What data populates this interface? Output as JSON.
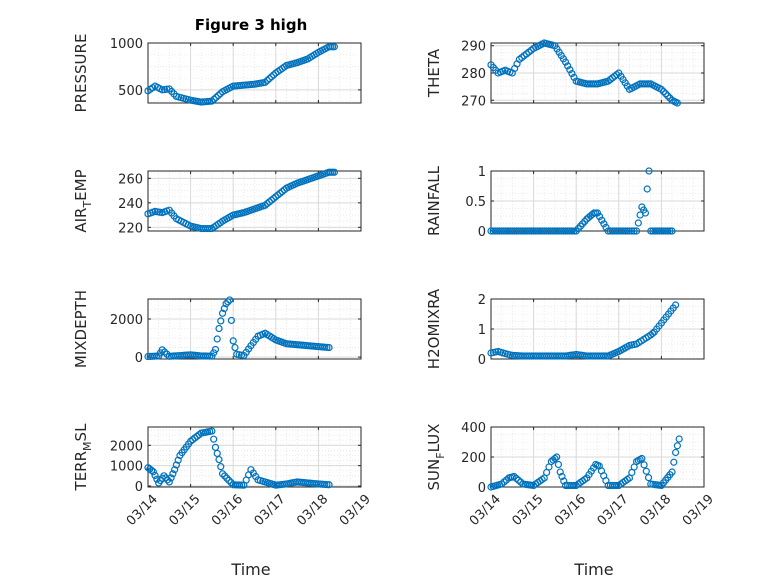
{
  "figure": {
    "title": "Figure 3 high",
    "xlabel": "Time"
  },
  "colors": {
    "marker": "#0072BD",
    "axis": "#262626",
    "grid": "#d9d9d9",
    "minor_grid": "#e6e6e6"
  },
  "chart_data": [
    {
      "type": "scatter",
      "id": "pressure",
      "ylabel": "PRESSURE",
      "ylabel_base": "PRESSURE",
      "ylabel_sub": "",
      "ylabel_rest": "",
      "ylim": [
        360,
        1000
      ],
      "yticks": [
        500,
        1000
      ],
      "yticklabels": [
        "500",
        "1000"
      ],
      "xlim": [
        "03/14",
        "03/18"
      ],
      "xticklabels": [],
      "grid": true,
      "x": [
        "03/14 00:00",
        "03/14 04:00",
        "03/14 08:00",
        "03/14 12:00",
        "03/14 16:00",
        "03/14 20:00",
        "03/15 00:00",
        "03/15 06:00",
        "03/15 12:00",
        "03/15 18:00",
        "03/16 00:00",
        "03/16 06:00",
        "03/16 12:00",
        "03/16 18:00",
        "03/17 00:00",
        "03/17 06:00",
        "03/17 12:00",
        "03/17 18:00",
        "03/18 00:00",
        "03/18 06:00",
        "03/18 09:00"
      ],
      "y": [
        490,
        540,
        500,
        510,
        430,
        410,
        390,
        370,
        380,
        480,
        540,
        550,
        560,
        580,
        680,
        760,
        790,
        830,
        900,
        960,
        960
      ]
    },
    {
      "type": "scatter",
      "id": "theta",
      "ylabel": "THETA",
      "ylabel_base": "THETA",
      "ylabel_sub": "",
      "ylabel_rest": "",
      "ylim": [
        269,
        291
      ],
      "yticks": [
        270,
        280,
        290
      ],
      "yticklabels": [
        "270",
        "280",
        "290"
      ],
      "xlim": [
        "03/14",
        "03/18"
      ],
      "xticklabels": [],
      "grid": true,
      "x": [
        "03/14 00:00",
        "03/14 04:00",
        "03/14 08:00",
        "03/14 12:00",
        "03/14 16:00",
        "03/14 20:00",
        "03/15 00:00",
        "03/15 06:00",
        "03/15 12:00",
        "03/15 18:00",
        "03/16 00:00",
        "03/16 06:00",
        "03/16 12:00",
        "03/16 18:00",
        "03/17 00:00",
        "03/17 06:00",
        "03/17 12:00",
        "03/17 18:00",
        "03/18 00:00",
        "03/18 06:00",
        "03/18 09:00"
      ],
      "y": [
        283,
        280,
        281,
        280,
        285,
        287,
        289,
        291,
        290,
        284,
        277,
        276,
        276,
        277,
        280,
        274,
        276,
        276,
        274,
        270,
        269
      ]
    },
    {
      "type": "scatter",
      "id": "air_temp",
      "ylabel": "AIR_TEMP",
      "ylabel_base": "AIR",
      "ylabel_sub": "T",
      "ylabel_rest": "EMP",
      "ylim": [
        217,
        266
      ],
      "yticks": [
        220,
        240,
        260
      ],
      "yticklabels": [
        "220",
        "240",
        "260"
      ],
      "xlim": [
        "03/14",
        "03/18"
      ],
      "xticklabels": [],
      "grid": true,
      "x": [
        "03/14 00:00",
        "03/14 04:00",
        "03/14 08:00",
        "03/14 12:00",
        "03/14 16:00",
        "03/14 20:00",
        "03/15 00:00",
        "03/15 06:00",
        "03/15 12:00",
        "03/15 18:00",
        "03/16 00:00",
        "03/16 06:00",
        "03/16 12:00",
        "03/16 18:00",
        "03/17 00:00",
        "03/17 06:00",
        "03/17 12:00",
        "03/17 18:00",
        "03/18 00:00",
        "03/18 06:00",
        "03/18 09:00"
      ],
      "y": [
        231,
        233,
        232,
        234,
        227,
        224,
        221,
        219,
        219,
        225,
        230,
        232,
        235,
        238,
        245,
        252,
        256,
        259,
        262,
        265,
        265
      ]
    },
    {
      "type": "scatter",
      "id": "rainfall",
      "ylabel": "RAINFALL",
      "ylabel_base": "RAINFALL",
      "ylabel_sub": "",
      "ylabel_rest": "",
      "ylim": [
        0,
        1
      ],
      "yticks": [
        0,
        0.5,
        1
      ],
      "yticklabels": [
        "0",
        "0.5",
        "1"
      ],
      "xlim": [
        "03/14",
        "03/18"
      ],
      "xticklabels": [],
      "grid": true,
      "x": [
        "03/14 00:00",
        "03/14 06:00",
        "03/14 12:00",
        "03/14 18:00",
        "03/15 00:00",
        "03/15 06:00",
        "03/15 12:00",
        "03/15 18:00",
        "03/16 00:00",
        "03/16 06:00",
        "03/16 08:00",
        "03/16 10:00",
        "03/16 12:00",
        "03/16 18:00",
        "03/17 00:00",
        "03/17 06:00",
        "03/17 10:00",
        "03/17 13:00",
        "03/17 15:00",
        "03/17 16:00",
        "03/17 17:00",
        "03/17 18:00",
        "03/18 00:00",
        "03/18 06:00"
      ],
      "y": [
        0,
        0,
        0,
        0,
        0,
        0,
        0,
        0,
        0,
        0.2,
        0.25,
        0.3,
        0.3,
        0,
        0,
        0,
        0,
        0.4,
        0.3,
        0.7,
        1.0,
        0,
        0,
        0
      ]
    },
    {
      "type": "scatter",
      "id": "mixdepth",
      "ylabel": "MIXDEPTH",
      "ylabel_base": "MIXDEPTH",
      "ylabel_sub": "",
      "ylabel_rest": "",
      "ylim": [
        -100,
        3050
      ],
      "yticks": [
        0,
        2000
      ],
      "yticklabels": [
        "0",
        "2000"
      ],
      "xlim": [
        "03/14",
        "03/18"
      ],
      "xticklabels": [],
      "grid": true,
      "x": [
        "03/14 00:00",
        "03/14 06:00",
        "03/14 08:00",
        "03/14 12:00",
        "03/14 18:00",
        "03/15 00:00",
        "03/15 06:00",
        "03/15 12:00",
        "03/15 14:00",
        "03/15 16:00",
        "03/15 18:00",
        "03/15 20:00",
        "03/15 22:00",
        "03/16 00:00",
        "03/16 02:00",
        "03/16 06:00",
        "03/16 10:00",
        "03/16 14:00",
        "03/16 18:00",
        "03/17 00:00",
        "03/17 06:00",
        "03/17 12:00",
        "03/17 18:00",
        "03/18 00:00",
        "03/18 06:00"
      ],
      "y": [
        30,
        60,
        380,
        40,
        80,
        120,
        60,
        50,
        400,
        1500,
        2300,
        2800,
        3000,
        850,
        150,
        80,
        600,
        1100,
        1250,
        900,
        700,
        650,
        600,
        550,
        500
      ]
    },
    {
      "type": "scatter",
      "id": "h2omixra",
      "ylabel": "H2OMIXRA",
      "ylabel_base": "H2OMIXRA",
      "ylabel_sub": "",
      "ylabel_rest": "",
      "ylim": [
        0,
        2
      ],
      "yticks": [
        0,
        1,
        2
      ],
      "yticklabels": [
        "0",
        "1",
        "2"
      ],
      "xlim": [
        "03/14",
        "03/18"
      ],
      "xticklabels": [],
      "grid": true,
      "x": [
        "03/14 00:00",
        "03/14 04:00",
        "03/14 08:00",
        "03/14 12:00",
        "03/14 18:00",
        "03/15 00:00",
        "03/15 06:00",
        "03/15 12:00",
        "03/15 18:00",
        "03/16 00:00",
        "03/16 06:00",
        "03/16 12:00",
        "03/16 18:00",
        "03/17 00:00",
        "03/17 06:00",
        "03/17 10:00",
        "03/17 14:00",
        "03/17 18:00",
        "03/17 20:00",
        "03/18 00:00",
        "03/18 04:00",
        "03/18 08:00"
      ],
      "y": [
        0.2,
        0.25,
        0.18,
        0.12,
        0.1,
        0.1,
        0.1,
        0.1,
        0.1,
        0.15,
        0.1,
        0.1,
        0.1,
        0.25,
        0.45,
        0.5,
        0.65,
        0.8,
        0.9,
        1.2,
        1.5,
        1.8
      ]
    },
    {
      "type": "scatter",
      "id": "terr_msl",
      "ylabel": "TERR_MSL",
      "ylabel_base": "TERR",
      "ylabel_sub": "M",
      "ylabel_rest": "SL",
      "ylim": [
        -50,
        2900
      ],
      "yticks": [
        0,
        1000,
        2000
      ],
      "yticklabels": [
        "0",
        "1000",
        "2000"
      ],
      "xlim": [
        "03/14",
        "03/18"
      ],
      "xticklabels": [
        "03/14",
        "03/15",
        "03/16",
        "03/17",
        "03/18",
        "03/19"
      ],
      "grid": true,
      "x": [
        "03/14 00:00",
        "03/14 03:00",
        "03/14 06:00",
        "03/14 09:00",
        "03/14 12:00",
        "03/14 15:00",
        "03/14 18:00",
        "03/15 00:00",
        "03/15 06:00",
        "03/15 12:00",
        "03/15 14:00",
        "03/15 16:00",
        "03/15 18:00",
        "03/16 00:00",
        "03/16 06:00",
        "03/16 10:00",
        "03/16 14:00",
        "03/16 18:00",
        "03/17 00:00",
        "03/17 06:00",
        "03/17 12:00",
        "03/17 18:00",
        "03/18 00:00",
        "03/18 06:00"
      ],
      "y": [
        900,
        700,
        150,
        500,
        200,
        800,
        1500,
        2200,
        2600,
        2700,
        1900,
        1300,
        600,
        60,
        40,
        800,
        300,
        200,
        40,
        100,
        200,
        150,
        100,
        60
      ]
    },
    {
      "type": "scatter",
      "id": "sun_flux",
      "ylabel": "SUN_FLUX",
      "ylabel_base": "SUN",
      "ylabel_sub": "F",
      "ylabel_rest": "LUX",
      "ylim": [
        0,
        400
      ],
      "yticks": [
        0,
        200,
        400
      ],
      "yticklabels": [
        "0",
        "200",
        "400"
      ],
      "xlim": [
        "03/14",
        "03/18"
      ],
      "xticklabels": [
        "03/14",
        "03/15",
        "03/16",
        "03/17",
        "03/18",
        "03/19"
      ],
      "grid": true,
      "x": [
        "03/14 00:00",
        "03/14 06:00",
        "03/14 10:00",
        "03/14 13:00",
        "03/14 18:00",
        "03/15 00:00",
        "03/15 06:00",
        "03/15 10:00",
        "03/15 13:00",
        "03/15 15:00",
        "03/15 18:00",
        "03/16 00:00",
        "03/16 06:00",
        "03/16 11:00",
        "03/16 13:00",
        "03/16 18:00",
        "03/17 00:00",
        "03/17 06:00",
        "03/17 10:00",
        "03/17 13:00",
        "03/17 18:00",
        "03/18 00:00",
        "03/18 06:00",
        "03/18 08:00",
        "03/18 10:00"
      ],
      "y": [
        0,
        20,
        60,
        70,
        20,
        10,
        60,
        170,
        200,
        100,
        10,
        10,
        60,
        150,
        140,
        10,
        10,
        60,
        170,
        190,
        20,
        10,
        100,
        230,
        320
      ]
    }
  ]
}
